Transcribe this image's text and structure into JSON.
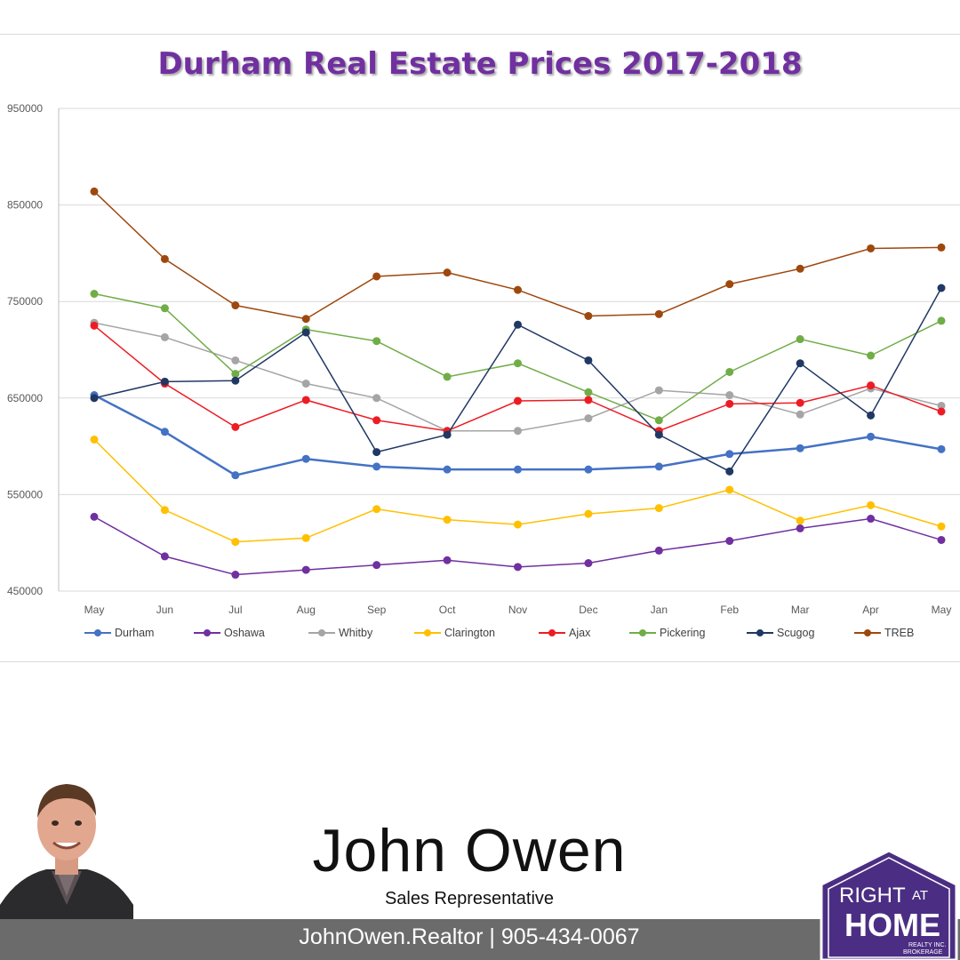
{
  "chart_data": {
    "type": "line",
    "title": "Durham Real Estate Prices 2017-2018",
    "xlabel": "",
    "ylabel": "",
    "categories": [
      "May",
      "Jun",
      "Jul",
      "Aug",
      "Sep",
      "Oct",
      "Nov",
      "Dec",
      "Jan",
      "Feb",
      "Mar",
      "Apr",
      "May"
    ],
    "ylim": [
      450000,
      950000
    ],
    "yticks": [
      "950000",
      "850000",
      "750000",
      "650000",
      "550000",
      "450000"
    ],
    "grid": true,
    "legend_position": "bottom",
    "series": [
      {
        "name": "Durham",
        "color": "#4472c4",
        "values": [
          653000,
          615000,
          570000,
          587000,
          579000,
          576000,
          576000,
          576000,
          579000,
          592000,
          598000,
          610000,
          597000
        ]
      },
      {
        "name": "Oshawa",
        "color": "#7030a0",
        "values": [
          527000,
          486000,
          467000,
          472000,
          477000,
          482000,
          475000,
          479000,
          492000,
          502000,
          515000,
          525000,
          503000
        ]
      },
      {
        "name": "Whitby",
        "color": "#a5a5a5",
        "values": [
          728000,
          713000,
          689000,
          665000,
          650000,
          616000,
          616000,
          629000,
          658000,
          653000,
          633000,
          660000,
          642000
        ]
      },
      {
        "name": "Clarington",
        "color": "#ffc000",
        "values": [
          607000,
          534000,
          501000,
          505000,
          535000,
          524000,
          519000,
          530000,
          536000,
          555000,
          523000,
          539000,
          517000
        ]
      },
      {
        "name": "Ajax",
        "color": "#ed1c24",
        "values": [
          725000,
          665000,
          620000,
          648000,
          627000,
          616000,
          647000,
          648000,
          616000,
          644000,
          645000,
          663000,
          636000
        ]
      },
      {
        "name": "Pickering",
        "color": "#70ad47",
        "values": [
          758000,
          743000,
          675000,
          721000,
          709000,
          672000,
          686000,
          656000,
          627000,
          677000,
          711000,
          694000,
          730000
        ]
      },
      {
        "name": "Scugog",
        "color": "#203864",
        "values": [
          650000,
          667000,
          668000,
          718000,
          594000,
          612000,
          726000,
          689000,
          612000,
          574000,
          686000,
          632000,
          764000
        ]
      },
      {
        "name": "TREB",
        "color": "#9e480e",
        "values": [
          864000,
          794000,
          746000,
          732000,
          776000,
          780000,
          762000,
          735000,
          737000,
          768000,
          784000,
          805000,
          806000
        ]
      }
    ]
  },
  "agent": {
    "name": "John Owen",
    "role": "Sales Representative",
    "contact": "JohnOwen.Realtor | 905-434-0067"
  },
  "brand": {
    "line1": "RIGHT",
    "line1b": "AT",
    "line2": "HOME",
    "line3": "REALTY INC.",
    "line4": "BROKERAGE",
    "color": "#4b2e83"
  }
}
